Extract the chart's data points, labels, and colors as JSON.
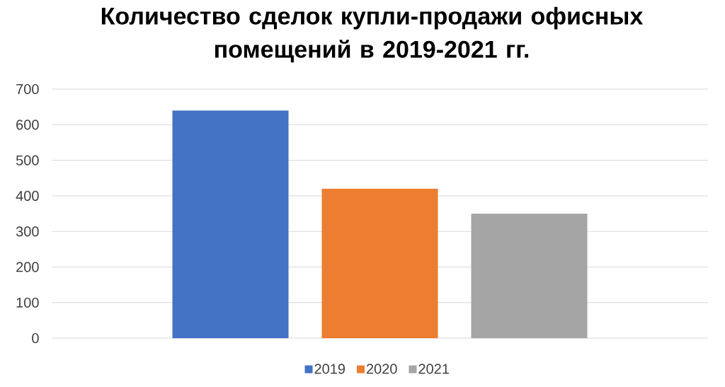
{
  "chart_data": {
    "type": "bar",
    "title": "Количество сделок купли-продажи офисных помещений в 2019-2021 гг.",
    "categories": [
      null
    ],
    "series": [
      {
        "name": "2019",
        "color": "#4472c4",
        "values": [
          640
        ]
      },
      {
        "name": "2020",
        "color": "#ed7d31",
        "values": [
          420
        ]
      },
      {
        "name": "2021",
        "color": "#a5a5a5",
        "values": [
          350
        ]
      }
    ],
    "ylim": [
      0,
      700
    ],
    "yticks": [
      0,
      100,
      200,
      300,
      400,
      500,
      600,
      700
    ],
    "grid": "y",
    "legend": "bottom"
  }
}
